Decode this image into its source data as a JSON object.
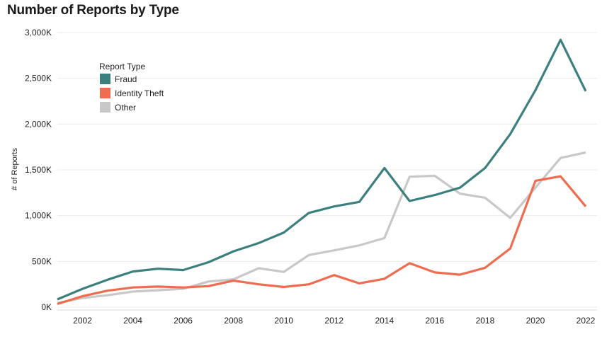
{
  "chart_data": {
    "type": "line",
    "title": "Number of Reports by Type",
    "ylabel": "# of Reports",
    "xlabel": "",
    "x": [
      2001,
      2002,
      2003,
      2004,
      2005,
      2006,
      2007,
      2008,
      2009,
      2010,
      2011,
      2012,
      2013,
      2014,
      2015,
      2016,
      2017,
      2018,
      2019,
      2020,
      2021,
      2022
    ],
    "xlim": [
      2001,
      2022.45
    ],
    "ylim": [
      0,
      3000
    ],
    "y_unit": "K",
    "x_ticks": [
      {
        "value": 2002,
        "label": "2002"
      },
      {
        "value": 2004,
        "label": "2004"
      },
      {
        "value": 2006,
        "label": "2006"
      },
      {
        "value": 2008,
        "label": "2008"
      },
      {
        "value": 2010,
        "label": "2010"
      },
      {
        "value": 2012,
        "label": "2012"
      },
      {
        "value": 2014,
        "label": "2014"
      },
      {
        "value": 2016,
        "label": "2016"
      },
      {
        "value": 2018,
        "label": "2018"
      },
      {
        "value": 2020,
        "label": "2020"
      },
      {
        "value": 2022,
        "label": "2022"
      }
    ],
    "y_ticks": [
      {
        "value": 0,
        "label": "0K"
      },
      {
        "value": 500,
        "label": "500K"
      },
      {
        "value": 1000,
        "label": "1,000K"
      },
      {
        "value": 1500,
        "label": "1,500K"
      },
      {
        "value": 2000,
        "label": "2,000K"
      },
      {
        "value": 2500,
        "label": "2,500K"
      },
      {
        "value": 3000,
        "label": "3,000K"
      }
    ],
    "grid": true,
    "legend": {
      "title": "Report Type",
      "placement": "top-left"
    },
    "series": [
      {
        "name": "Fraud",
        "color": "#3b7f7e",
        "values": [
          85,
          200,
          300,
          390,
          420,
          405,
          490,
          610,
          700,
          815,
          1030,
          1100,
          1150,
          1520,
          1160,
          1225,
          1305,
          1520,
          1890,
          2370,
          2920,
          2360
        ]
      },
      {
        "name": "Identity Theft",
        "color": "#ee6c50",
        "values": [
          35,
          120,
          180,
          215,
          225,
          215,
          230,
          290,
          250,
          220,
          250,
          350,
          260,
          310,
          480,
          380,
          355,
          430,
          640,
          1380,
          1430,
          1100
        ]
      },
      {
        "name": "Other",
        "color": "#c8c8c8",
        "values": [
          45,
          100,
          130,
          170,
          185,
          200,
          280,
          305,
          425,
          385,
          570,
          620,
          675,
          755,
          1425,
          1435,
          1240,
          1195,
          975,
          1305,
          1630,
          1690
        ]
      }
    ]
  }
}
